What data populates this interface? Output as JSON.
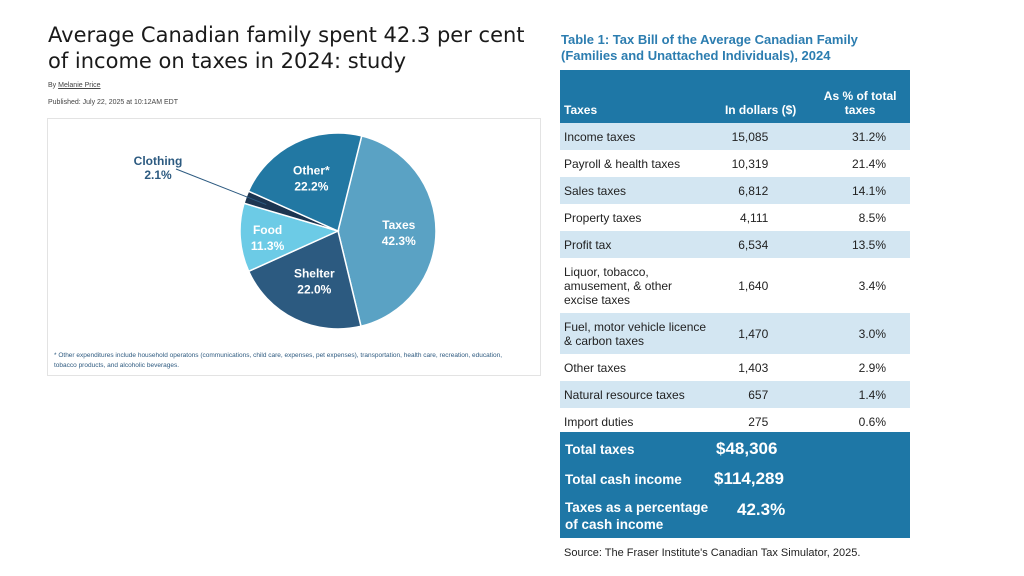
{
  "article": {
    "headline": "Average Canadian family spent 42.3 per cent of income on taxes in 2024: study",
    "byline_prefix": "By",
    "author": "Melanie Price",
    "published": "Published: July 22, 2025 at 10:12AM EDT",
    "footnote": "* Other expenditures include household operatons (communications, child care, expenses, pet expenses), transportation, health care, recreation, education, tobacco products, and alcoholic beverages."
  },
  "chart_data": {
    "type": "pie",
    "title": "",
    "slices": [
      {
        "label": "Taxes",
        "value": 42.3,
        "display": "42.3%",
        "color": "#5aa2c4"
      },
      {
        "label": "Shelter",
        "value": 22.0,
        "display": "22.0%",
        "color": "#2c5a80"
      },
      {
        "label": "Food",
        "value": 11.3,
        "display": "11.3%",
        "color": "#6ccbe6"
      },
      {
        "label": "Clothing",
        "value": 2.1,
        "display": "2.1%",
        "color": "#1c3550"
      },
      {
        "label": "Other*",
        "value": 22.2,
        "display": "22.2%",
        "color": "#2278a3"
      }
    ]
  },
  "table": {
    "title_line1": "Table 1: Tax Bill of the Average Canadian Family",
    "title_line2": "(Families and Unattached Individuals), 2024",
    "headers": {
      "taxes": "Taxes",
      "dollars": "In dollars ($)",
      "pct": "As % of total taxes"
    },
    "rows": [
      {
        "name": "Income taxes",
        "dollars": "15,085",
        "pct": "31.2%"
      },
      {
        "name": "Payroll & health taxes",
        "dollars": "10,319",
        "pct": "21.4%"
      },
      {
        "name": "Sales taxes",
        "dollars": "6,812",
        "pct": "14.1%"
      },
      {
        "name": "Property taxes",
        "dollars": "4,111",
        "pct": "8.5%"
      },
      {
        "name": "Profit tax",
        "dollars": "6,534",
        "pct": "13.5%"
      },
      {
        "name": "Liquor, tobacco, amusement, & other excise taxes",
        "dollars": "1,640",
        "pct": "3.4%"
      },
      {
        "name": "Fuel, motor vehicle licence & carbon taxes",
        "dollars": "1,470",
        "pct": "3.0%"
      },
      {
        "name": "Other taxes",
        "dollars": "1,403",
        "pct": "2.9%"
      },
      {
        "name": "Natural resource taxes",
        "dollars": "657",
        "pct": "1.4%"
      },
      {
        "name": "Import duties",
        "dollars": "275",
        "pct": "0.6%"
      }
    ],
    "totals": {
      "total_taxes_label": "Total taxes",
      "total_taxes_value": "$48,306",
      "cash_income_label": "Total cash income",
      "cash_income_value": "$114,289",
      "pct_label_line1": "Taxes as a percentage",
      "pct_label_line2": "of cash income",
      "pct_value": "42.3%"
    },
    "source": "Source: The Fraser Institute's Canadian Tax Simulator, 2025."
  },
  "colors": {
    "accent": "#1e77a6",
    "row_shade": "#d3e6f2",
    "title_blue": "#2c7db0"
  }
}
